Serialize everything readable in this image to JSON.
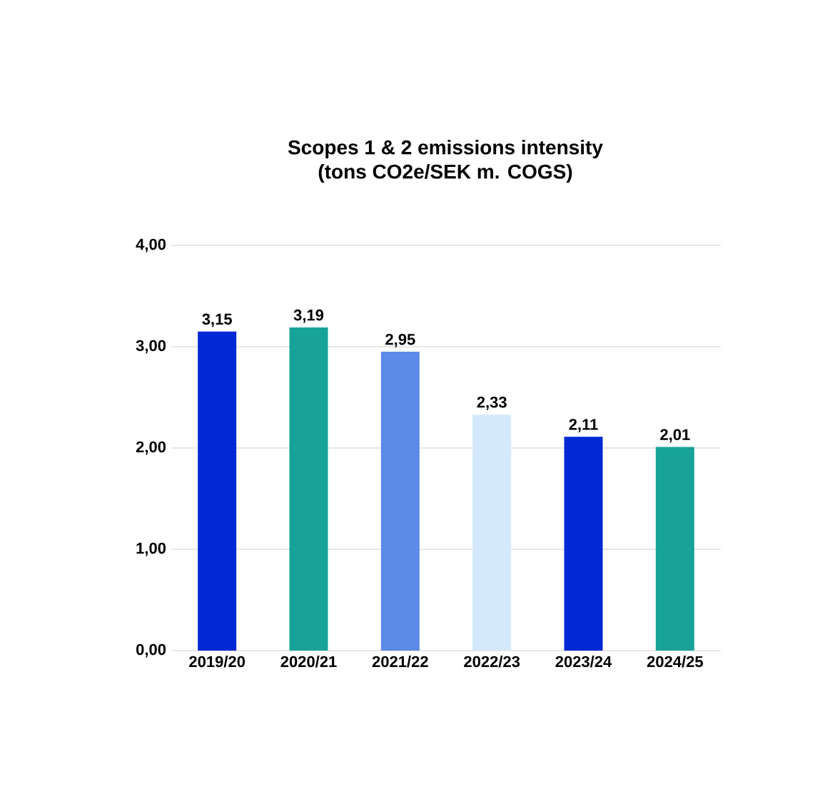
{
  "chart_data": {
    "type": "bar",
    "title": "Scopes 1 & 2 emissions intensity",
    "subtitle": "(tons CO2e/SEK m. COGS)",
    "categories": [
      "2019/20",
      "2020/21",
      "2021/22",
      "2022/23",
      "2023/24",
      "2024/25"
    ],
    "values": [
      3.15,
      3.19,
      2.95,
      2.33,
      2.11,
      2.01
    ],
    "value_labels": [
      "3,15",
      "3,19",
      "2,95",
      "2,33",
      "2,11",
      "2,01"
    ],
    "colors": [
      "#0028d4",
      "#17a398",
      "#5b8ae8",
      "#d4e9fc",
      "#0028d4",
      "#17a398"
    ],
    "ylim": [
      0,
      4
    ],
    "yticks": [
      {
        "value": 0,
        "label": "0,00"
      },
      {
        "value": 1,
        "label": "1,00"
      },
      {
        "value": 2,
        "label": "2,00"
      },
      {
        "value": 3,
        "label": "3,00"
      },
      {
        "value": 4,
        "label": "4,00"
      }
    ],
    "grid": "y"
  }
}
